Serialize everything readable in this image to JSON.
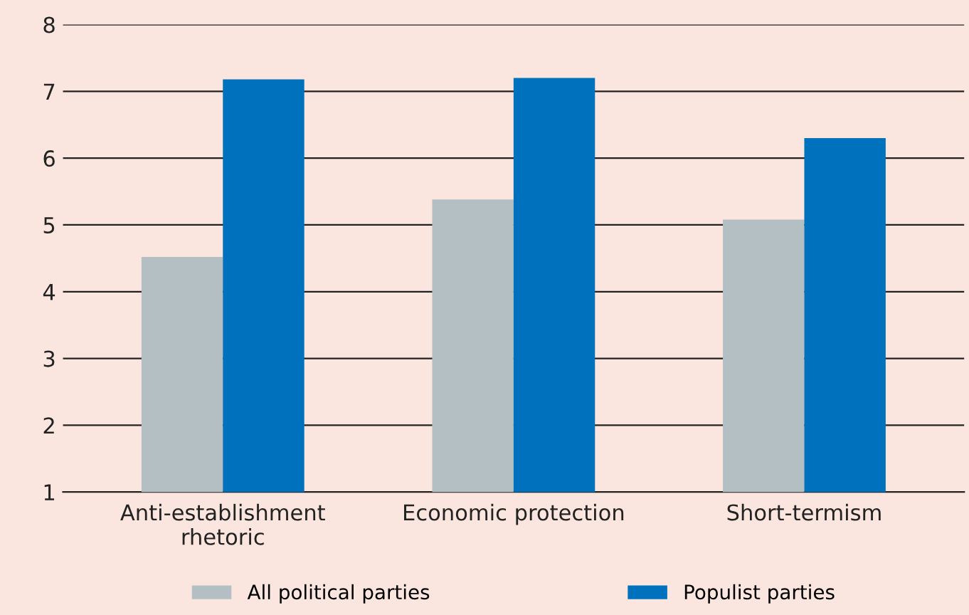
{
  "chart_data": {
    "type": "bar",
    "categories": [
      "Anti-establishment\nrhetoric",
      "Economic protection",
      "Short-termism"
    ],
    "series": [
      {
        "name": "All political parties",
        "color": "#b4bfc4",
        "values": [
          4.52,
          5.38,
          5.08
        ]
      },
      {
        "name": "Populist parties",
        "color": "#0071bc",
        "values": [
          7.18,
          7.2,
          6.3
        ]
      }
    ],
    "ylim": [
      1,
      8
    ],
    "yticks": [
      1,
      2,
      3,
      4,
      5,
      6,
      7,
      8
    ],
    "grid": "y",
    "legend": "bottom"
  }
}
